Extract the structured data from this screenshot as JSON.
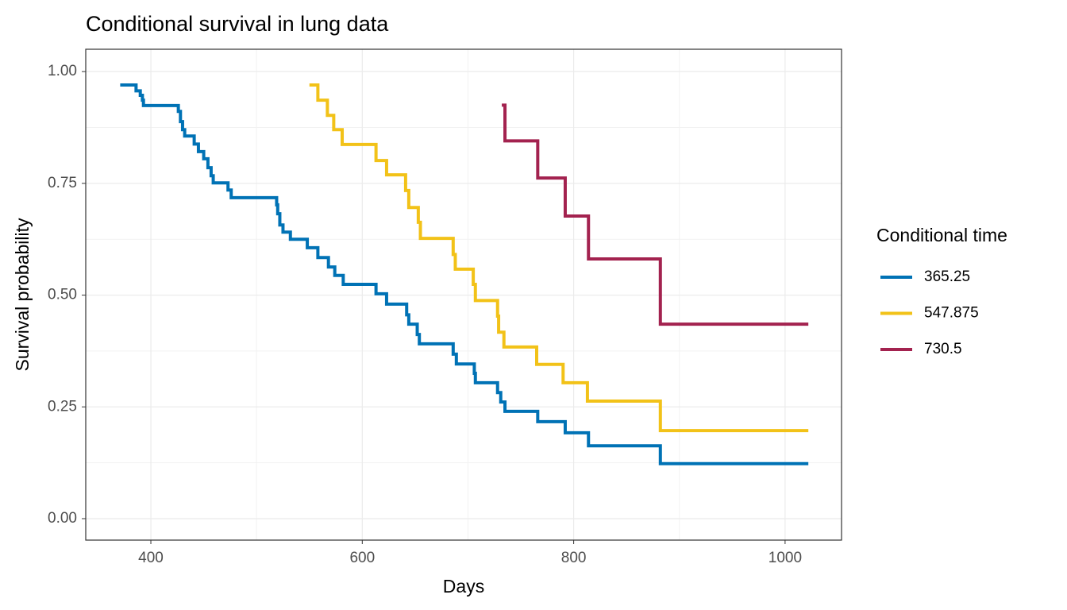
{
  "chart_data": {
    "type": "step",
    "title": "Conditional survival in lung data",
    "xlabel": "Days",
    "ylabel": "Survival probability",
    "legend_title": "Conditional time",
    "legend_position": "right",
    "xlim": [
      338.4,
      1053.4
    ],
    "ylim": [
      -0.048,
      1.05
    ],
    "xticks": [
      400,
      600,
      800,
      1000
    ],
    "yticks": [
      {
        "value": 0,
        "label": "0.00"
      },
      {
        "value": 0.25,
        "label": "0.25"
      },
      {
        "value": 0.5,
        "label": "0.50"
      },
      {
        "value": 0.75,
        "label": "0.75"
      },
      {
        "value": 1,
        "label": "1.00"
      }
    ],
    "grid": true,
    "minor_grid": true,
    "series": [
      {
        "name": "365.25",
        "color": "#0072B5",
        "x": [
          371,
          386,
          390,
          392,
          393,
          426,
          428,
          430,
          432,
          441,
          445,
          450,
          454,
          457,
          459,
          473,
          476,
          519,
          520,
          522,
          525,
          532,
          548,
          558,
          568,
          574,
          582,
          613,
          623,
          642,
          644,
          652,
          654,
          686,
          689,
          706,
          707,
          728,
          731,
          735,
          766,
          792,
          814,
          882,
          1022
        ],
        "values": [
          0.97,
          0.957,
          0.947,
          0.936,
          0.924,
          0.911,
          0.888,
          0.87,
          0.856,
          0.838,
          0.821,
          0.805,
          0.785,
          0.767,
          0.751,
          0.735,
          0.718,
          0.702,
          0.682,
          0.657,
          0.641,
          0.625,
          0.606,
          0.584,
          0.563,
          0.544,
          0.524,
          0.503,
          0.48,
          0.456,
          0.435,
          0.412,
          0.391,
          0.368,
          0.346,
          0.325,
          0.304,
          0.282,
          0.261,
          0.24,
          0.217,
          0.192,
          0.163,
          0.123,
          0.123
        ]
      },
      {
        "name": "547.875",
        "color": "#F2C218",
        "x": [
          550,
          558,
          567,
          573,
          581,
          613,
          623,
          641,
          644,
          653,
          655,
          686,
          688,
          705,
          707,
          728,
          729,
          734,
          765,
          790,
          813,
          882,
          1022
        ],
        "values": [
          0.97,
          0.936,
          0.902,
          0.87,
          0.837,
          0.801,
          0.769,
          0.734,
          0.696,
          0.663,
          0.627,
          0.591,
          0.558,
          0.524,
          0.488,
          0.453,
          0.417,
          0.384,
          0.345,
          0.304,
          0.263,
          0.197,
          0.197
        ]
      },
      {
        "name": "730.5",
        "color": "#A3224F",
        "x": [
          732,
          735,
          766,
          792,
          814,
          882,
          1022
        ],
        "values": [
          0.925,
          0.845,
          0.762,
          0.677,
          0.581,
          0.435,
          0.435
        ]
      }
    ]
  }
}
